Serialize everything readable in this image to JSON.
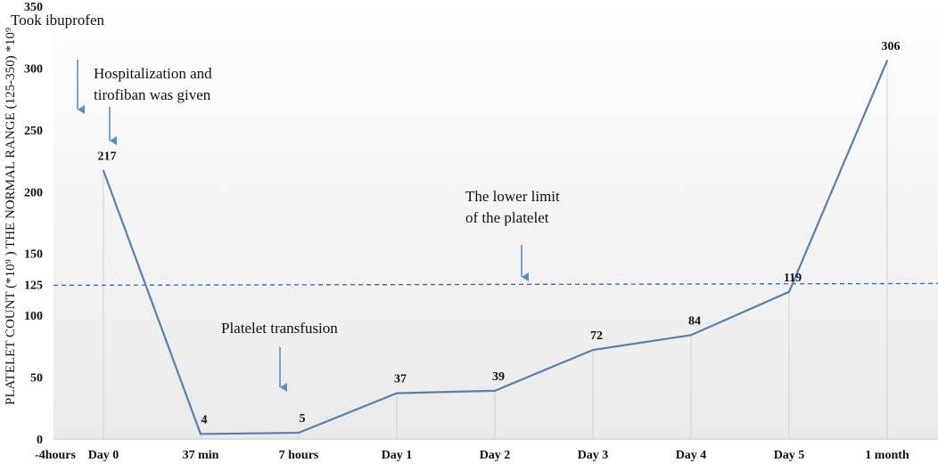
{
  "chart_data": {
    "type": "line",
    "title": "",
    "xlabel": "",
    "ylabel": "PLATELET  COUNT (*10⁹ )   THE NORMAL RANGE  (125-350)  *10⁹",
    "ylim": [
      0,
      350
    ],
    "yticks": [
      0,
      50,
      100,
      125,
      150,
      200,
      250,
      300,
      350
    ],
    "categories": [
      "-4hours",
      "Day 0",
      "37 min",
      "7 hours",
      "Day 1",
      "Day 2",
      "Day 3",
      "Day 4",
      "Day 5",
      "1 month"
    ],
    "series": [
      {
        "name": "Platelet count",
        "color": "#5b7fa6",
        "x": [
          "Day 0",
          "37 min",
          "7 hours",
          "Day 1",
          "Day 2",
          "Day 3",
          "Day 4",
          "Day 5",
          "1 month"
        ],
        "values": [
          217,
          4,
          5,
          37,
          39,
          72,
          84,
          119,
          306
        ],
        "labels": [
          "217",
          "4",
          "5",
          "37",
          "39",
          "72",
          "84",
          "119",
          "306"
        ]
      }
    ],
    "reference_line": {
      "value": 125,
      "style": "dashed",
      "color": "#3f6a9a"
    },
    "annotations": [
      {
        "lines": [
          "Took ibuprofen"
        ],
        "target": "-4hours"
      },
      {
        "lines": [
          "Hospitalization and",
          "tirofiban was given"
        ],
        "target": "Day 0"
      },
      {
        "lines": [
          "The lower limit",
          "of the platelet"
        ],
        "target": "reference line"
      },
      {
        "lines": [
          "Platelet transfusion"
        ],
        "target": "7 hours"
      }
    ],
    "grid": "vertical"
  }
}
